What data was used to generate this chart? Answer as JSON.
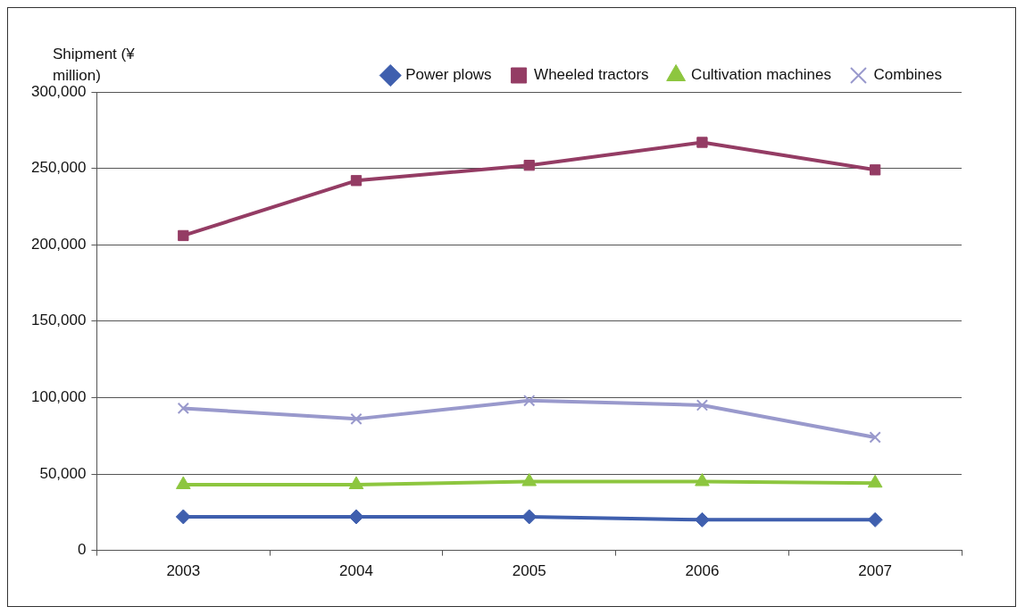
{
  "chart_data": {
    "type": "line",
    "ylabel": "Shipment (¥ million)",
    "categories": [
      "2003",
      "2004",
      "2005",
      "2006",
      "2007"
    ],
    "series": [
      {
        "name": "Power plows",
        "color": "#3f5fae",
        "marker": "diamond",
        "values": [
          22000,
          22000,
          22000,
          20000,
          20000
        ]
      },
      {
        "name": "Wheeled tractors",
        "color": "#943c64",
        "marker": "square",
        "values": [
          206000,
          242000,
          252000,
          267000,
          249000
        ]
      },
      {
        "name": "Cultivation machines",
        "color": "#8dc63f",
        "marker": "triangle",
        "values": [
          43000,
          43000,
          45000,
          45000,
          44000
        ]
      },
      {
        "name": "Combines",
        "color": "#9999cc",
        "marker": "cross",
        "values": [
          93000,
          86000,
          98000,
          95000,
          74000
        ]
      }
    ],
    "ylim": [
      0,
      300000
    ],
    "yticks": [
      {
        "value": 0,
        "label": "0"
      },
      {
        "value": 50000,
        "label": "50,000"
      },
      {
        "value": 100000,
        "label": "100,000"
      },
      {
        "value": 150000,
        "label": "150,000"
      },
      {
        "value": 200000,
        "label": "200,000"
      },
      {
        "value": 250000,
        "label": "250,000"
      },
      {
        "value": 300000,
        "label": "300,000"
      }
    ],
    "grid": "y",
    "legend": "top right",
    "line_style": "solid"
  }
}
